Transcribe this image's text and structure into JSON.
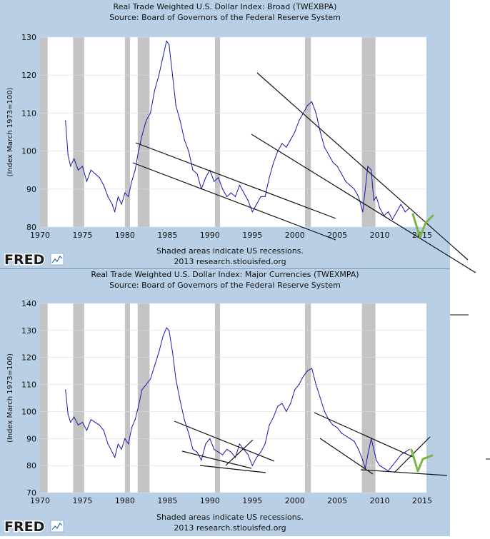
{
  "colors": {
    "panel_bg": "#b8cfe6",
    "plot_bg": "#ffffff",
    "series": "#1a1aa8",
    "recession": "#c4c4c4",
    "trend": "#111111",
    "check": "#7fb347",
    "grid": "#d7e0ea"
  },
  "chart_data": [
    {
      "type": "line",
      "title": "Real Trade Weighted U.S. Dollar Index: Broad (TWEXBPA)",
      "subtitle": "Source: Board of Governors of the Federal Reserve System",
      "ylabel": "(Index March 1973=100)",
      "xlim": [
        1970,
        2015.5
      ],
      "ylim": [
        80,
        130
      ],
      "xticks": [
        "1970",
        "1975",
        "1980",
        "1985",
        "1990",
        "1995",
        "2000",
        "2005",
        "2010",
        "2015"
      ],
      "yticks": [
        "80",
        "90",
        "100",
        "110",
        "120",
        "130"
      ],
      "footnote": "Shaded areas indicate US recessions.",
      "credit": "2013 research.stlouisfed.org",
      "logo": "FRED",
      "recessions": [
        [
          1970.0,
          1970.9
        ],
        [
          1973.9,
          1975.2
        ],
        [
          1980.0,
          1980.6
        ],
        [
          1981.5,
          1982.9
        ],
        [
          1990.6,
          1991.2
        ],
        [
          2001.2,
          2001.9
        ],
        [
          2007.9,
          2009.5
        ]
      ],
      "series": [
        {
          "x": [
            1973.0,
            1973.3,
            1973.6,
            1974.0,
            1974.5,
            1975.0,
            1975.5,
            1976.0,
            1976.5,
            1977.0,
            1977.5,
            1978.0,
            1978.5,
            1978.8,
            1979.2,
            1979.6,
            1980.0,
            1980.4,
            1980.8,
            1981.2,
            1981.6,
            1982.0,
            1982.5,
            1983.0,
            1983.5,
            1984.0,
            1984.5,
            1984.9,
            1985.2,
            1985.6,
            1986.0,
            1986.5,
            1987.0,
            1987.5,
            1988.0,
            1988.5,
            1989.0,
            1989.5,
            1990.0,
            1990.5,
            1991.0,
            1991.5,
            1992.0,
            1992.5,
            1993.0,
            1993.5,
            1994.0,
            1994.5,
            1995.0,
            1995.5,
            1996.0,
            1996.5,
            1997.0,
            1997.5,
            1998.0,
            1998.5,
            1999.0,
            1999.5,
            2000.0,
            2000.5,
            2001.0,
            2001.5,
            2002.0,
            2002.5,
            2003.0,
            2003.5,
            2004.0,
            2004.5,
            2005.0,
            2005.5,
            2006.0,
            2006.5,
            2007.0,
            2007.5,
            2008.0,
            2008.3,
            2008.6,
            2009.0,
            2009.3,
            2009.6,
            2010.0,
            2010.5,
            2011.0,
            2011.5,
            2012.0,
            2012.5,
            2013.0,
            2013.5
          ],
          "values": [
            108,
            99,
            96,
            98,
            95,
            96,
            92,
            95,
            94,
            93,
            91,
            88,
            86,
            84,
            88,
            86,
            89,
            88,
            92,
            95,
            100,
            104,
            108,
            110,
            116,
            120,
            125,
            129,
            128,
            120,
            112,
            108,
            103,
            100,
            95,
            94,
            90,
            93,
            95,
            92,
            93,
            90,
            88,
            89,
            88,
            91,
            89,
            87,
            84,
            86,
            88,
            88,
            93,
            97,
            100,
            102,
            101,
            103,
            105,
            108,
            110,
            112,
            113,
            110,
            105,
            101,
            99,
            97,
            96,
            94,
            92,
            91,
            90,
            88,
            84,
            90,
            96,
            95,
            87,
            88,
            85,
            83,
            84,
            82,
            84,
            86,
            84,
            85
          ]
        }
      ],
      "trend_notes": "hand-drawn trend lines and green check mark annotations"
    },
    {
      "type": "line",
      "title": "Real Trade Weighted U.S. Dollar Index: Major Currencies (TWEXMPA)",
      "subtitle": "Source: Board of Governors of the Federal Reserve System",
      "ylabel": "(Index March 1973=100)",
      "xlim": [
        1970,
        2015.5
      ],
      "ylim": [
        70,
        140
      ],
      "xticks": [
        "1970",
        "1975",
        "1980",
        "1985",
        "1990",
        "1995",
        "2000",
        "2005",
        "2010",
        "2015"
      ],
      "yticks": [
        "70",
        "80",
        "90",
        "100",
        "110",
        "120",
        "130",
        "140"
      ],
      "footnote": "Shaded areas indicate US recessions.",
      "credit": "2013 research.stlouisfed.org",
      "logo": "FRED",
      "recessions": [
        [
          1970.0,
          1970.9
        ],
        [
          1973.9,
          1975.2
        ],
        [
          1980.0,
          1980.6
        ],
        [
          1981.5,
          1982.9
        ],
        [
          1990.6,
          1991.2
        ],
        [
          2001.2,
          2001.9
        ],
        [
          2007.9,
          2009.5
        ]
      ],
      "series": [
        {
          "x": [
            1973.0,
            1973.3,
            1973.6,
            1974.0,
            1974.5,
            1975.0,
            1975.5,
            1976.0,
            1976.5,
            1977.0,
            1977.5,
            1978.0,
            1978.5,
            1978.8,
            1979.2,
            1979.6,
            1980.0,
            1980.4,
            1980.8,
            1981.2,
            1981.6,
            1982.0,
            1982.5,
            1983.0,
            1983.5,
            1984.0,
            1984.5,
            1984.9,
            1985.2,
            1985.6,
            1986.0,
            1986.5,
            1987.0,
            1987.5,
            1988.0,
            1988.5,
            1989.0,
            1989.5,
            1990.0,
            1990.5,
            1991.0,
            1991.5,
            1992.0,
            1992.5,
            1993.0,
            1993.5,
            1994.0,
            1994.5,
            1995.0,
            1995.5,
            1996.0,
            1996.5,
            1997.0,
            1997.5,
            1998.0,
            1998.5,
            1999.0,
            1999.5,
            2000.0,
            2000.5,
            2001.0,
            2001.5,
            2002.0,
            2002.5,
            2003.0,
            2003.5,
            2004.0,
            2004.5,
            2005.0,
            2005.5,
            2006.0,
            2006.5,
            2007.0,
            2007.5,
            2008.0,
            2008.3,
            2008.6,
            2009.0,
            2009.3,
            2009.6,
            2010.0,
            2010.5,
            2011.0,
            2011.5,
            2012.0,
            2012.5,
            2013.0,
            2013.5
          ],
          "values": [
            108,
            99,
            96,
            98,
            95,
            96,
            93,
            97,
            96,
            95,
            93,
            88,
            85,
            83,
            88,
            86,
            90,
            88,
            94,
            97,
            102,
            108,
            110,
            112,
            117,
            122,
            128,
            131,
            130,
            122,
            112,
            104,
            97,
            92,
            86,
            85,
            82,
            88,
            90,
            86,
            85,
            84,
            86,
            85,
            83,
            88,
            86,
            84,
            80,
            83,
            85,
            88,
            95,
            98,
            102,
            103,
            100,
            103,
            108,
            110,
            113,
            115,
            116,
            110,
            105,
            100,
            97,
            95,
            94,
            92,
            91,
            90,
            89,
            86,
            82,
            79,
            84,
            90,
            86,
            82,
            80,
            79,
            78,
            80,
            82,
            84,
            85,
            86
          ]
        }
      ],
      "trend_notes": "hand-drawn trend lines and green check mark annotations"
    }
  ]
}
